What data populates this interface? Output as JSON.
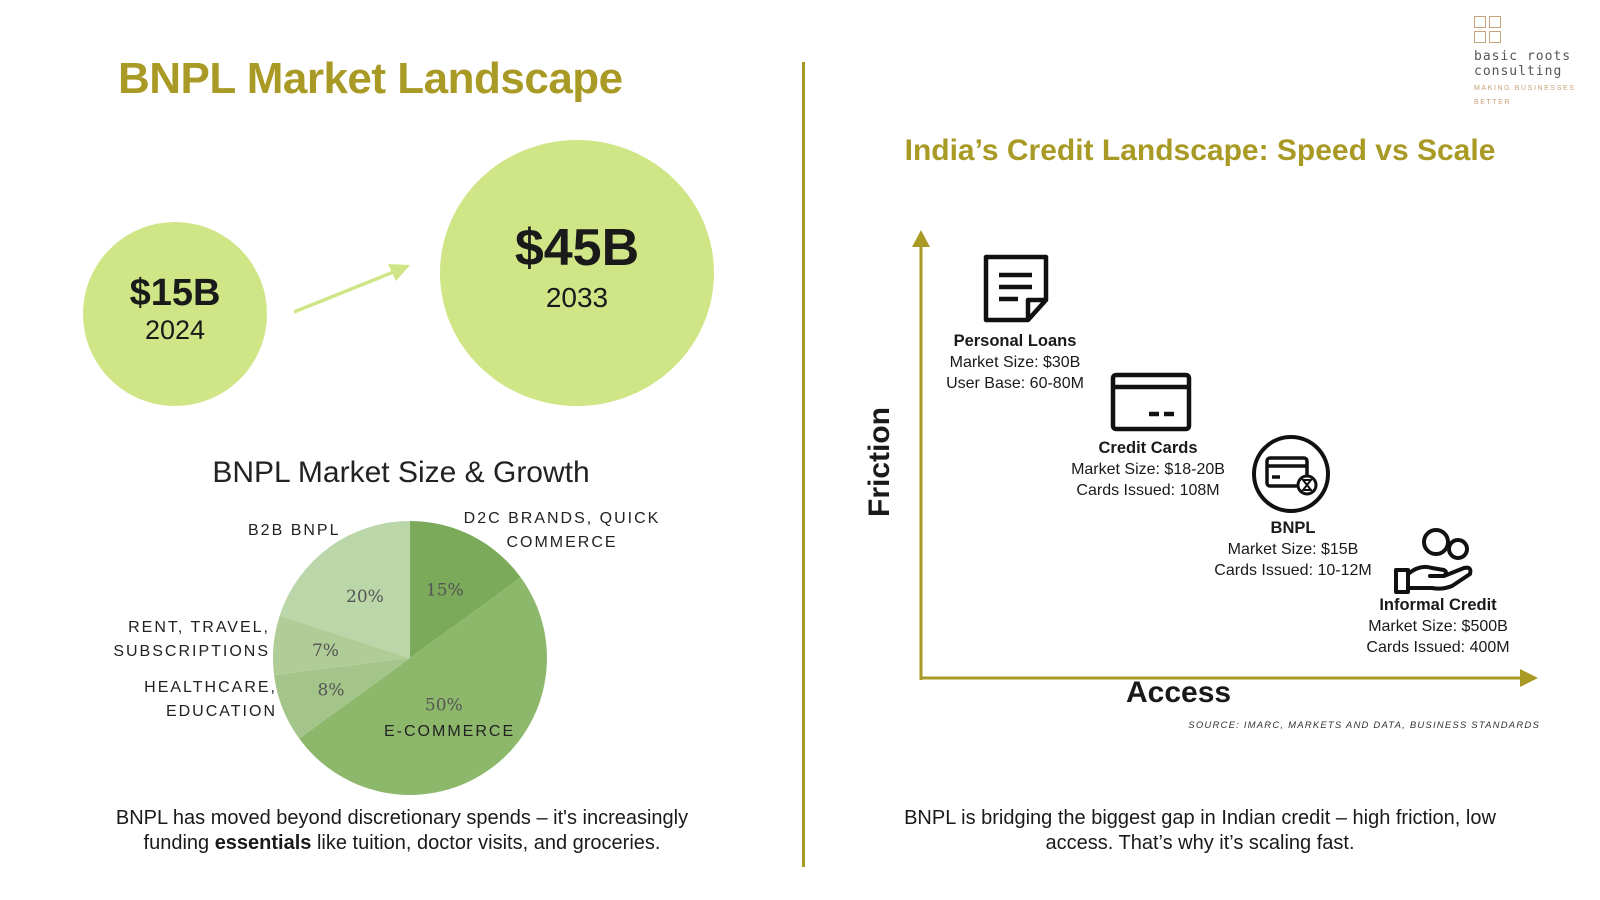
{
  "header": {
    "title": "BNPL Market Landscape",
    "logo": {
      "name_line1": "basic roots",
      "name_line2": "consulting",
      "tagline_line1": "MAKING BUSINESSES",
      "tagline_line2": "BETTER",
      "icon": "four-squares-logo-icon"
    }
  },
  "growth": {
    "start": {
      "value": "$15B",
      "year": "2024"
    },
    "end": {
      "value": "$45B",
      "year": "2033"
    },
    "arrow_icon": "arrow-up-right-icon"
  },
  "pie_title": "BNPL Market Size & Growth",
  "chart_data": {
    "type": "pie",
    "title": "BNPL Market Size & Growth",
    "slices": [
      {
        "label": "D2C BRANDS, QUICK COMMERCE",
        "label_line1": "D2C BRANDS, QUICK",
        "label_line2": "COMMERCE",
        "value": 15,
        "pct_label": "15%",
        "color": "#7aaa5a"
      },
      {
        "label": "E-COMMERCE",
        "value": 50,
        "pct_label": "50%",
        "color": "#8db86b"
      },
      {
        "label": "HEALTHCARE, EDUCATION",
        "label_line1": "HEALTHCARE,",
        "label_line2": "EDUCATION",
        "value": 8,
        "pct_label": "8%",
        "color": "#a4c58a"
      },
      {
        "label": "RENT, TRAVEL, SUBSCRIPTIONS",
        "label_line1": "RENT, TRAVEL,",
        "label_line2": "SUBSCRIPTIONS",
        "value": 7,
        "pct_label": "7%",
        "color": "#b0cd98"
      },
      {
        "label": "B2B BNPL",
        "value": 20,
        "pct_label": "20%",
        "color": "#bbd6a8"
      }
    ]
  },
  "left_caption": {
    "line1": "BNPL has moved beyond discretionary spends – it's increasingly",
    "line2_pre": "funding ",
    "line2_bold": "essentials",
    "line2_post": " like tuition, doctor visits, and groceries."
  },
  "right": {
    "title": "India’s Credit Landscape: Speed vs Scale",
    "axis_y": "Friction",
    "axis_x": "Access",
    "source": "SOURCE: IMARC, MARKETS AND DATA, BUSINESS STANDARDS",
    "items": [
      {
        "name": "Personal Loans",
        "line1": "Market Size: $30B",
        "line2": "User Base: 60-80M",
        "icon": "document-icon"
      },
      {
        "name": "Credit Cards",
        "line1": "Market Size: $18-20B",
        "line2": "Cards Issued: 108M",
        "icon": "credit-card-icon"
      },
      {
        "name": "BNPL",
        "line1": "Market Size: $15B",
        "line2": "Cards Issued: 10-12M",
        "icon": "card-hourglass-icon"
      },
      {
        "name": "Informal Credit",
        "line1": "Market Size: $500B",
        "line2": "Cards Issued: 400M",
        "icon": "hand-coins-icon"
      }
    ],
    "caption_line1": "BNPL is bridging the biggest gap in Indian credit – high friction, low",
    "caption_line2": "access. That’s why it’s scaling fast."
  },
  "colors": {
    "accent": "#a99a25",
    "circle": "#cfe586",
    "logo": "#c7a27a"
  }
}
